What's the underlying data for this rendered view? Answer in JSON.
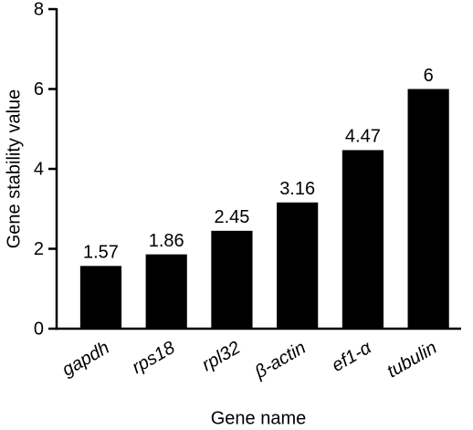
{
  "chart_data": {
    "type": "bar",
    "categories": [
      "gapdh",
      "rps18",
      "rpl32",
      "β-actin",
      "ef1-α",
      "tubulin"
    ],
    "values": [
      1.57,
      1.86,
      2.45,
      3.16,
      4.47,
      6
    ],
    "color": "#000000",
    "xlabel": "Gene name",
    "ylabel": "Gene stability value",
    "ylim": [
      0,
      8
    ],
    "yticks": [
      0,
      2,
      4,
      6,
      8
    ],
    "grid": false
  }
}
